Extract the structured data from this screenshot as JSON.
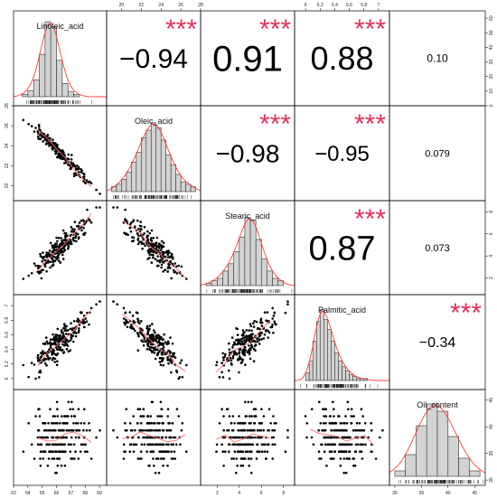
{
  "chart_data": {
    "type": "scatter",
    "variables": [
      "Linoleic_acid",
      "Oleic_acid",
      "Stearic_acid",
      "Palmitic_acid",
      "Oil_content"
    ],
    "colors": {
      "hist_fill": "#d3d3d3",
      "density": "#ff3b3b",
      "points": "#000000",
      "smoother": "#ff6b6b",
      "stars": "#e5305a",
      "border": "#000000"
    },
    "correlations": [
      {
        "row": 0,
        "col": 1,
        "text": "−0.94",
        "stars": "***",
        "size": 30
      },
      {
        "row": 0,
        "col": 2,
        "text": "0.91",
        "stars": "***",
        "size": 40
      },
      {
        "row": 0,
        "col": 3,
        "text": "0.88",
        "stars": "***",
        "size": 36
      },
      {
        "row": 0,
        "col": 4,
        "text": "0.10",
        "stars": "",
        "size": 12
      },
      {
        "row": 1,
        "col": 2,
        "text": "−0.98",
        "stars": "***",
        "size": 28
      },
      {
        "row": 1,
        "col": 3,
        "text": "−0.95",
        "stars": "***",
        "size": 24
      },
      {
        "row": 1,
        "col": 4,
        "text": "0.079",
        "stars": "",
        "size": 11
      },
      {
        "row": 2,
        "col": 3,
        "text": "0.87",
        "stars": "***",
        "size": 38
      },
      {
        "row": 2,
        "col": 4,
        "text": "0.073",
        "stars": "",
        "size": 11
      },
      {
        "row": 3,
        "col": 4,
        "text": "−0.34",
        "stars": "***",
        "size": 16
      }
    ],
    "axes": {
      "bottom": [
        {
          "col": 0,
          "range": [
            63,
            69.5
          ],
          "ticks": [
            63,
            64,
            65,
            66,
            67,
            68,
            69
          ]
        },
        {
          "col": 2,
          "range": [
            0.5,
            9
          ],
          "ticks": [
            2,
            4,
            6,
            8
          ]
        },
        {
          "col": 4,
          "range": [
            29,
            47
          ],
          "ticks": [
            30,
            35,
            40,
            45
          ]
        }
      ],
      "top": [
        {
          "col": 1,
          "range": [
            18.5,
            28
          ],
          "ticks": [
            20,
            22,
            24,
            26,
            28
          ]
        },
        {
          "col": 3,
          "range": [
            5.85,
            7.15
          ],
          "ticks": [
            6.0,
            6.2,
            6.4,
            6.6,
            6.8,
            7.0
          ]
        }
      ],
      "left": [
        {
          "row": 1,
          "range": [
            18.5,
            28
          ],
          "ticks": [
            20,
            22,
            24,
            26,
            28
          ]
        },
        {
          "row": 3,
          "range": [
            5.85,
            7.15
          ],
          "ticks": [
            6.0,
            6.2,
            6.4,
            6.6,
            6.8,
            7.0
          ]
        }
      ],
      "right": [
        {
          "row": 0,
          "range": [
            0,
            65
          ],
          "ticks": [
            0,
            10,
            20,
            30,
            40,
            50,
            60
          ]
        },
        {
          "row": 2,
          "range": [
            0.5,
            9
          ],
          "ticks": [
            2,
            4,
            6,
            8
          ]
        },
        {
          "row": 4,
          "range": [
            29,
            47
          ],
          "ticks": [
            30,
            35,
            40,
            45
          ]
        }
      ]
    },
    "histograms": [
      {
        "var": "Linoleic_acid",
        "range": [
          63,
          69.5
        ],
        "bins": [
          63.6,
          64.0,
          64.4,
          64.8,
          65.2,
          65.6,
          66.0,
          66.4,
          66.8,
          67.2,
          67.6
        ],
        "counts": [
          2,
          5,
          14,
          35,
          62,
          58,
          30,
          11,
          4,
          2
        ],
        "ymax": 65
      },
      {
        "var": "Oleic_acid",
        "range": [
          18.5,
          28
        ],
        "bins": [
          19,
          19.5,
          20,
          20.5,
          21,
          21.5,
          22,
          22.5,
          23,
          23.5,
          24,
          24.5,
          25,
          25.5,
          26,
          26.5,
          27,
          27.5
        ],
        "counts": [
          2,
          3,
          5,
          8,
          12,
          16,
          22,
          25,
          28,
          26,
          21,
          15,
          11,
          7,
          4,
          3,
          2
        ],
        "ymax": 32
      },
      {
        "var": "Stearic_acid",
        "range": [
          0.5,
          9
        ],
        "bins": [
          1,
          1.5,
          2,
          2.5,
          3,
          3.5,
          4,
          4.5,
          5,
          5.5,
          6,
          6.5,
          7,
          7.5,
          8
        ],
        "counts": [
          1,
          2,
          3,
          6,
          9,
          14,
          20,
          28,
          27,
          19,
          11,
          6,
          3,
          2
        ],
        "ymax": 32
      },
      {
        "var": "Palmitic_acid",
        "range": [
          5.85,
          7.15
        ],
        "bins": [
          6.0,
          6.05,
          6.1,
          6.15,
          6.2,
          6.25,
          6.3,
          6.35,
          6.4,
          6.45,
          6.5,
          6.55,
          6.6,
          6.65,
          6.7,
          6.75,
          6.8,
          6.85
        ],
        "counts": [
          4,
          10,
          20,
          30,
          36,
          31,
          26,
          20,
          14,
          10,
          7,
          5,
          3,
          2,
          1,
          1,
          1
        ],
        "ymax": 40
      },
      {
        "var": "Oil_content",
        "range": [
          29,
          47
        ],
        "bins": [
          30,
          32,
          34,
          36,
          38,
          40,
          42,
          44,
          46
        ],
        "counts": [
          3,
          12,
          28,
          40,
          36,
          22,
          10,
          3
        ],
        "ymax": 44
      }
    ],
    "scatter_seed": 7,
    "n_points": 220
  }
}
